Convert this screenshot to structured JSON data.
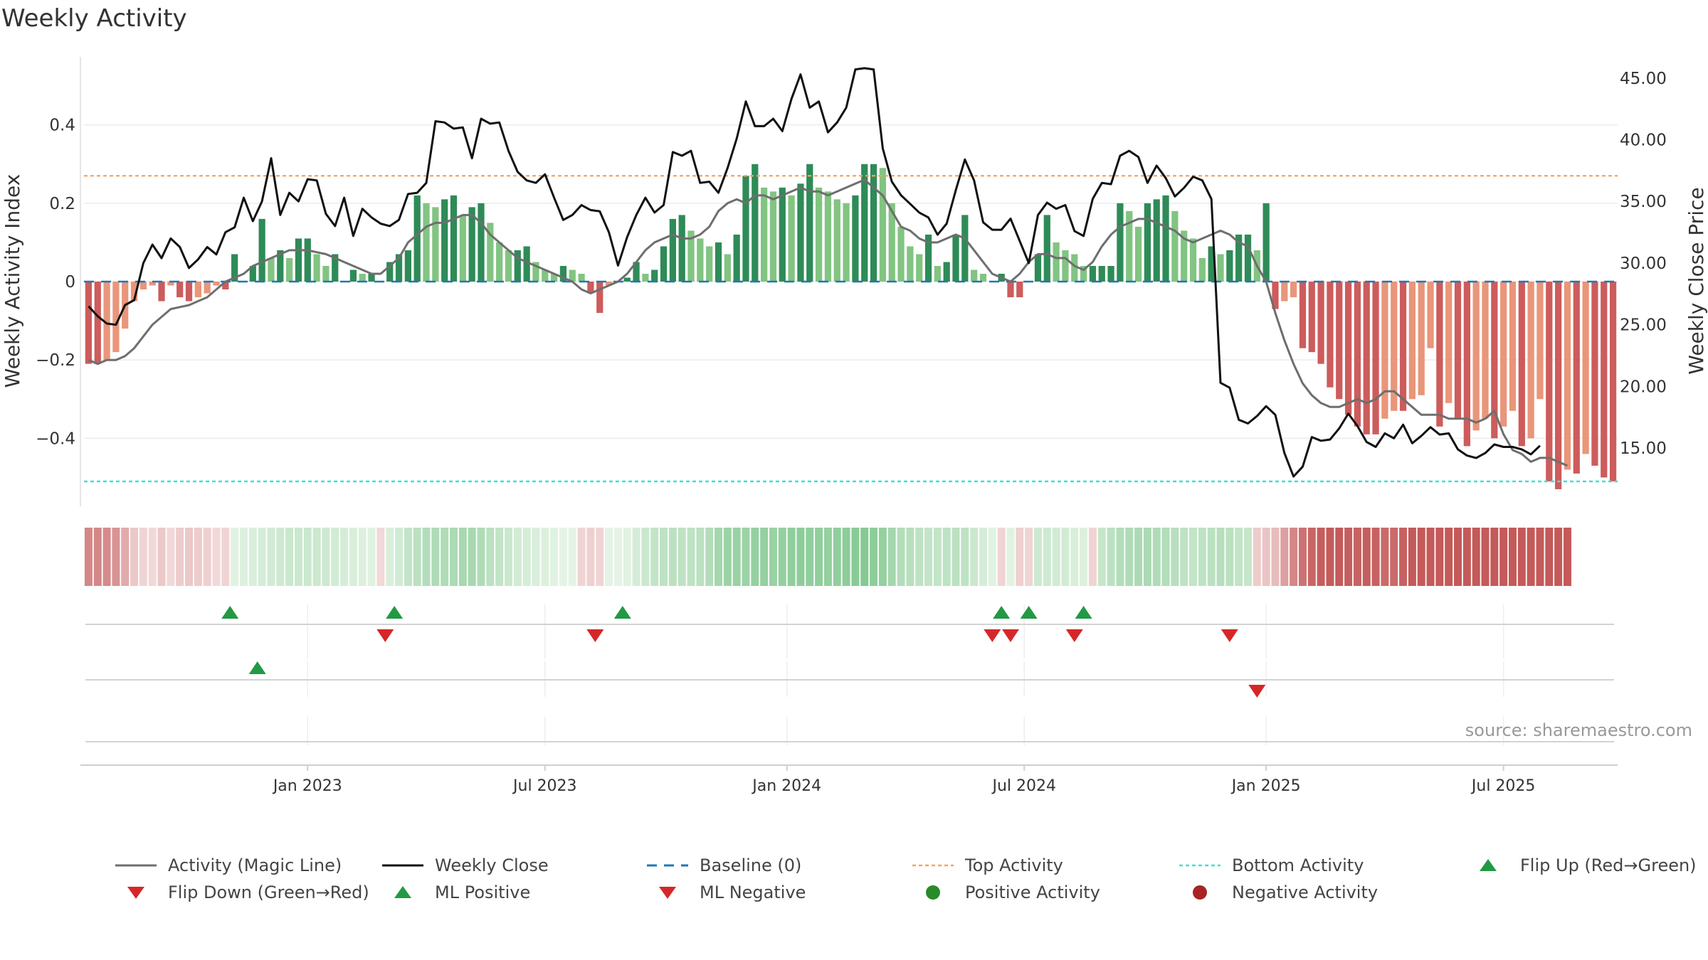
{
  "title": "Weekly Activity",
  "source": "source: sharemaestro.com",
  "colors": {
    "green_dark": "#2e8b57",
    "green_light": "#82c482",
    "red_dark": "#cd5c5c",
    "red_light": "#e9967a",
    "magic_line": "#6e6e6e",
    "close": "#111111",
    "baseline": "#1f77b4",
    "top": "#f4a460",
    "bottom": "#40e0d0",
    "marker_up": "#229944",
    "marker_down": "#d62728"
  },
  "chart_data": {
    "type": "bar",
    "x_labels": [
      "Jan 2023",
      "Jul 2023",
      "Jan 2024",
      "Jul 2024",
      "Jan 2025",
      "Jul 2025"
    ],
    "x_label_weeks": [
      24,
      50,
      76.5,
      102.5,
      129,
      155
    ],
    "ylabel_left": "Weekly Activity Index",
    "ylabel_right": "Weekly Close Price",
    "ylim_left": [
      -0.57,
      0.57
    ],
    "ylim_right": [
      10.4,
      46.6
    ],
    "yticks_left": [
      -0.4,
      -0.2,
      0,
      0.2,
      0.4
    ],
    "ytick_labels_left": [
      "−0.4",
      "−0.2",
      "0",
      "0.2",
      "0.4"
    ],
    "yticks_right": [
      15,
      20,
      25,
      30,
      35,
      40,
      45
    ],
    "ytick_labels_right": [
      "15.00",
      "20.00",
      "25.00",
      "30.00",
      "35.00",
      "40.00",
      "45.00"
    ],
    "top_activity": 0.27,
    "bottom_activity": -0.51,
    "baseline": 0,
    "activity": [
      -0.21,
      -0.21,
      -0.2,
      -0.18,
      -0.12,
      -0.05,
      -0.02,
      -0.01,
      -0.05,
      -0.01,
      -0.04,
      -0.05,
      -0.04,
      -0.03,
      -0.01,
      -0.02,
      0.07,
      0,
      0.04,
      0.16,
      0.06,
      0.08,
      0.06,
      0.11,
      0.11,
      0.07,
      0.04,
      0.07,
      0,
      0.03,
      0.02,
      0.02,
      0,
      0.05,
      0.07,
      0.08,
      0.22,
      0.2,
      0.19,
      0.21,
      0.22,
      0.17,
      0.19,
      0.2,
      0.15,
      0.1,
      0.08,
      0.08,
      0.09,
      0.05,
      0.03,
      0.02,
      0.04,
      0.03,
      0.02,
      -0.03,
      -0.08,
      -0.01,
      0,
      0.01,
      0.05,
      0.02,
      0.03,
      0.09,
      0.16,
      0.17,
      0.13,
      0.11,
      0.09,
      0.1,
      0.07,
      0.12,
      0.27,
      0.3,
      0.24,
      0.23,
      0.24,
      0.22,
      0.25,
      0.3,
      0.24,
      0.23,
      0.21,
      0.2,
      0.22,
      0.3,
      0.3,
      0.29,
      0.2,
      0.14,
      0.09,
      0.07,
      0.12,
      0.04,
      0.05,
      0.12,
      0.17,
      0.03,
      0.02,
      0,
      0.02,
      -0.04,
      -0.04,
      0,
      0.07,
      0.17,
      0.1,
      0.08,
      0.07,
      0.04,
      0.04,
      0.04,
      0.04,
      0.2,
      0.18,
      0.14,
      0.2,
      0.21,
      0.22,
      0.18,
      0.13,
      0.11,
      0.06,
      0.09,
      0.07,
      0.08,
      0.12,
      0.12,
      0.08,
      0.2,
      -0.07,
      -0.05,
      -0.04,
      -0.17,
      -0.18,
      -0.21,
      -0.27,
      -0.3,
      -0.34,
      -0.37,
      -0.39,
      -0.39,
      -0.35,
      -0.33,
      -0.33,
      -0.3,
      -0.29,
      -0.17,
      -0.37,
      -0.31,
      -0.35,
      -0.42,
      -0.38,
      -0.35,
      -0.4,
      -0.37,
      -0.33,
      -0.42,
      -0.4,
      -0.3,
      -0.51,
      -0.53,
      -0.48,
      -0.49,
      -0.44,
      -0.47,
      -0.5,
      -0.51
    ],
    "magic_line": [
      -0.2,
      -0.21,
      -0.2,
      -0.2,
      -0.19,
      -0.17,
      -0.14,
      -0.11,
      -0.09,
      -0.07,
      -0.065,
      -0.06,
      -0.05,
      -0.04,
      -0.02,
      0,
      0.01,
      0.02,
      0.04,
      0.05,
      0.06,
      0.07,
      0.08,
      0.08,
      0.08,
      0.075,
      0.07,
      0.06,
      0.05,
      0.04,
      0.03,
      0.02,
      0.02,
      0.04,
      0.06,
      0.1,
      0.12,
      0.14,
      0.15,
      0.15,
      0.16,
      0.17,
      0.17,
      0.15,
      0.12,
      0.1,
      0.08,
      0.06,
      0.05,
      0.04,
      0.03,
      0.02,
      0.01,
      0,
      -0.02,
      -0.03,
      -0.02,
      -0.01,
      0,
      0.02,
      0.05,
      0.08,
      0.1,
      0.11,
      0.12,
      0.11,
      0.11,
      0.12,
      0.14,
      0.18,
      0.2,
      0.21,
      0.2,
      0.22,
      0.22,
      0.21,
      0.22,
      0.23,
      0.24,
      0.23,
      0.23,
      0.22,
      0.23,
      0.24,
      0.25,
      0.26,
      0.24,
      0.22,
      0.18,
      0.14,
      0.13,
      0.11,
      0.1,
      0.1,
      0.11,
      0.12,
      0.11,
      0.08,
      0.05,
      0.02,
      0.01,
      0,
      0.02,
      0.05,
      0.07,
      0.07,
      0.06,
      0.06,
      0.04,
      0.03,
      0.05,
      0.09,
      0.12,
      0.14,
      0.15,
      0.16,
      0.16,
      0.15,
      0.14,
      0.13,
      0.11,
      0.1,
      0.11,
      0.12,
      0.13,
      0.12,
      0.1,
      0.09,
      0.04,
      0,
      -0.08,
      -0.15,
      -0.21,
      -0.26,
      -0.29,
      -0.31,
      -0.32,
      -0.32,
      -0.31,
      -0.3,
      -0.31,
      -0.3,
      -0.28,
      -0.28,
      -0.3,
      -0.32,
      -0.34,
      -0.34,
      -0.34,
      -0.35,
      -0.35,
      -0.35,
      -0.36,
      -0.35,
      -0.33,
      -0.39,
      -0.43,
      -0.44,
      -0.46,
      -0.45,
      -0.45,
      -0.46,
      -0.47
    ],
    "close": [
      26.5,
      25.7,
      25.1,
      25,
      26.6,
      27,
      30,
      31.5,
      30.4,
      32,
      31.3,
      29.6,
      30.3,
      31.3,
      30.7,
      32.5,
      32.9,
      35.3,
      33.4,
      35,
      38.5,
      33.9,
      35.7,
      35,
      36.8,
      36.7,
      34,
      33,
      35.3,
      32.2,
      34.4,
      33.7,
      33.2,
      33,
      33.5,
      35.6,
      35.7,
      36.5,
      41.5,
      41.4,
      40.9,
      41,
      38.5,
      41.7,
      41.3,
      41.4,
      39.1,
      37.4,
      36.7,
      36.5,
      37.2,
      35.3,
      33.5,
      33.9,
      34.7,
      34.3,
      34.2,
      32.5,
      29.8,
      32.1,
      33.9,
      35.3,
      34.1,
      34.7,
      39,
      38.7,
      39.1,
      36.5,
      36.6,
      35.7,
      37.7,
      40.1,
      43.1,
      41.1,
      41.1,
      41.7,
      40.7,
      43.3,
      45.3,
      42.6,
      43.1,
      40.6,
      41.4,
      42.6,
      45.7,
      45.8,
      45.7,
      39.3,
      36.6,
      35.5,
      34.8,
      34.1,
      33.7,
      32.3,
      33.2,
      35.9,
      38.4,
      36.7,
      33.3,
      32.7,
      32.7,
      33.6,
      31.8,
      30,
      33.9,
      34.9,
      34.4,
      34.7,
      32.6,
      32.2,
      35.2,
      36.5,
      36.4,
      38.7,
      39.1,
      38.6,
      36.5,
      37.9,
      36.9,
      35.4,
      36.1,
      37,
      36.7,
      35.2,
      20.3,
      19.9,
      17.3,
      17,
      17.6,
      18.4,
      17.7,
      14.6,
      12.7,
      13.5,
      15.9,
      15.6,
      15.7,
      16.6,
      17.8,
      16.8,
      15.5,
      15.1,
      16.2,
      15.8,
      16.9,
      15.4,
      16,
      16.7,
      16.1,
      16.2,
      14.9,
      14.4,
      14.2,
      14.6,
      15.3,
      15.1,
      15.1,
      14.9,
      14.5,
      15.2
    ],
    "heat_strip": [
      -0.21,
      -0.21,
      -0.2,
      -0.18,
      -0.12,
      -0.05,
      -0.02,
      -0.01,
      -0.05,
      -0.01,
      -0.04,
      -0.05,
      -0.04,
      -0.03,
      -0.01,
      -0.02,
      0.02,
      0.03,
      0.04,
      0.05,
      0.06,
      0.07,
      0.08,
      0.08,
      0.08,
      0.075,
      0.07,
      0.06,
      0.05,
      0.04,
      0.03,
      0.02,
      -0.01,
      0.04,
      0.06,
      0.1,
      0.12,
      0.14,
      0.15,
      0.15,
      0.16,
      0.17,
      0.17,
      0.15,
      0.12,
      0.1,
      0.08,
      0.06,
      0.05,
      0.04,
      0.03,
      0.02,
      0.01,
      0.01,
      -0.02,
      -0.03,
      -0.02,
      0.01,
      0.01,
      0.02,
      0.05,
      0.08,
      0.1,
      0.11,
      0.12,
      0.11,
      0.11,
      0.12,
      0.14,
      0.18,
      0.2,
      0.21,
      0.2,
      0.22,
      0.22,
      0.21,
      0.22,
      0.23,
      0.24,
      0.23,
      0.23,
      0.22,
      0.23,
      0.24,
      0.25,
      0.26,
      0.24,
      0.22,
      0.18,
      0.14,
      0.13,
      0.11,
      0.1,
      0.1,
      0.11,
      0.12,
      0.11,
      0.08,
      0.05,
      0.02,
      -0.02,
      0.02,
      -0.03,
      -0.02,
      0.07,
      0.07,
      0.06,
      0.06,
      0.04,
      0.03,
      -0.02,
      0.09,
      0.12,
      0.14,
      0.15,
      0.16,
      0.16,
      0.15,
      0.14,
      0.13,
      0.11,
      0.1,
      0.11,
      0.12,
      0.13,
      0.12,
      0.1,
      0.09,
      -0.04,
      -0.06,
      -0.08,
      -0.15,
      -0.21,
      -0.26,
      -0.29,
      -0.31,
      -0.32,
      -0.32,
      -0.31,
      -0.3,
      -0.31,
      -0.3,
      -0.28,
      -0.28,
      -0.3,
      -0.32,
      -0.34,
      -0.34,
      -0.34,
      -0.35,
      -0.35,
      -0.35,
      -0.36,
      -0.35,
      -0.33,
      -0.39,
      -0.43,
      -0.44,
      -0.46,
      -0.45,
      -0.45,
      -0.46,
      -0.47
    ],
    "flip_up_weeks": [
      15.5,
      33.5,
      58.5,
      100,
      103,
      109
    ],
    "flip_down_weeks": [
      32.5,
      55.5,
      99,
      101,
      108,
      125
    ],
    "ml_positive_weeks": [
      18.5
    ],
    "ml_negative_weeks": [
      128
    ],
    "positive_activity_weeks": [],
    "negative_activity_weeks": []
  },
  "legend": [
    {
      "label": "Activity (Magic Line)",
      "kind": "line",
      "icon": "solid-line-icon"
    },
    {
      "label": "Weekly Close",
      "kind": "line-black",
      "icon": "solid-line-icon"
    },
    {
      "label": "Baseline (0)",
      "kind": "dash",
      "icon": "dashed-line-icon"
    },
    {
      "label": "Top Activity",
      "kind": "dot-orange",
      "icon": "dotted-line-icon"
    },
    {
      "label": "Bottom Activity",
      "kind": "dot-cyan",
      "icon": "dotted-line-icon"
    },
    {
      "label": "Flip Up (Red→Green)",
      "kind": "tri-up",
      "icon": "triangle-up-icon"
    },
    {
      "label": "Flip Down (Green→Red)",
      "kind": "tri-down",
      "icon": "triangle-down-icon"
    },
    {
      "label": "ML Positive",
      "kind": "tri-up",
      "icon": "triangle-up-icon"
    },
    {
      "label": "ML Negative",
      "kind": "tri-down",
      "icon": "triangle-down-icon"
    },
    {
      "label": "Positive Activity",
      "kind": "dot-green",
      "icon": "circle-icon"
    },
    {
      "label": "Negative Activity",
      "kind": "dot-red",
      "icon": "circle-icon"
    }
  ]
}
